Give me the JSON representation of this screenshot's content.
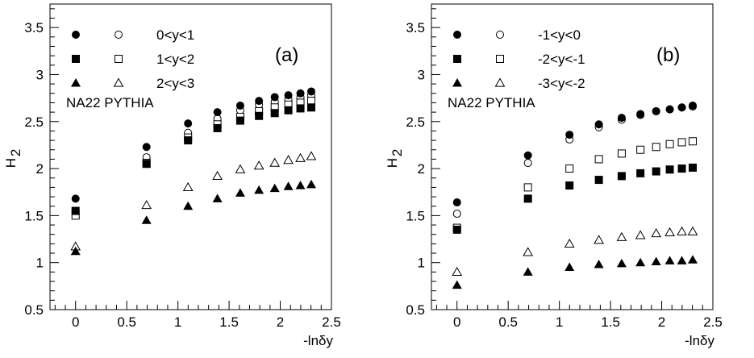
{
  "chart_data": [
    {
      "type": "scatter",
      "panel_label": "(a)",
      "xlabel": "-lnδy",
      "ylabel": "H",
      "ylabel_sub": "2",
      "xlim": [
        -0.25,
        2.5
      ],
      "ylim": [
        0.5,
        3.75
      ],
      "xticks": [
        "0",
        "0.5",
        "1",
        "1.5",
        "2",
        "2.5"
      ],
      "yticks": [
        "0.5",
        "1",
        "1.5",
        "2",
        "2.5",
        "3",
        "3.5"
      ],
      "grid": false,
      "legend_position": "top-left",
      "annotation": "NA22  PYTHIA",
      "x": [
        0,
        0.693,
        1.099,
        1.386,
        1.609,
        1.792,
        1.946,
        2.079,
        2.197,
        2.303
      ],
      "rows": [
        {
          "label": "0<y<1",
          "filled_marker": "circle",
          "open_marker": "circle",
          "filled": [
            1.68,
            2.23,
            2.48,
            2.6,
            2.67,
            2.72,
            2.76,
            2.78,
            2.8,
            2.82
          ],
          "open": [
            1.55,
            2.12,
            2.38,
            2.53,
            2.62,
            2.68,
            2.71,
            2.74,
            2.76,
            2.78
          ]
        },
        {
          "label": "1<y<2",
          "filled_marker": "square",
          "open_marker": "square",
          "filled": [
            1.55,
            2.05,
            2.3,
            2.43,
            2.51,
            2.56,
            2.59,
            2.62,
            2.64,
            2.65
          ],
          "open": [
            1.5,
            2.06,
            2.33,
            2.47,
            2.55,
            2.61,
            2.65,
            2.68,
            2.7,
            2.72
          ]
        },
        {
          "label": "2<y<3",
          "filled_marker": "triangle",
          "open_marker": "triangle",
          "filled": [
            1.12,
            1.45,
            1.6,
            1.68,
            1.74,
            1.77,
            1.79,
            1.81,
            1.82,
            1.83
          ],
          "open": [
            1.17,
            1.61,
            1.8,
            1.92,
            1.99,
            2.03,
            2.06,
            2.09,
            2.11,
            2.13
          ]
        }
      ]
    },
    {
      "type": "scatter",
      "panel_label": "(b)",
      "xlabel": "-lnδy",
      "ylabel": "H",
      "ylabel_sub": "2",
      "xlim": [
        -0.25,
        2.5
      ],
      "ylim": [
        0.5,
        3.75
      ],
      "xticks": [
        "0",
        "0.5",
        "1",
        "1.5",
        "2",
        "2.5"
      ],
      "yticks": [
        "0.5",
        "1",
        "1.5",
        "2",
        "2.5",
        "3",
        "3.5"
      ],
      "grid": false,
      "legend_position": "top-left",
      "annotation": "NA22  PYTHIA",
      "x": [
        0,
        0.693,
        1.099,
        1.386,
        1.609,
        1.792,
        1.946,
        2.079,
        2.197,
        2.303
      ],
      "rows": [
        {
          "label": "-1<y<0",
          "filled_marker": "circle",
          "open_marker": "circle",
          "filled": [
            1.64,
            2.14,
            2.36,
            2.47,
            2.54,
            2.58,
            2.61,
            2.63,
            2.65,
            2.67
          ],
          "open": [
            1.52,
            2.06,
            2.31,
            2.44,
            2.52,
            2.57,
            2.61,
            2.63,
            2.65,
            2.66
          ]
        },
        {
          "label": "-2<y<-1",
          "filled_marker": "square",
          "open_marker": "square",
          "filled": [
            1.35,
            1.68,
            1.82,
            1.88,
            1.92,
            1.95,
            1.97,
            1.99,
            2.0,
            2.01
          ],
          "open": [
            1.37,
            1.8,
            2.0,
            2.1,
            2.16,
            2.2,
            2.23,
            2.26,
            2.28,
            2.29
          ]
        },
        {
          "label": "-3<y<-2",
          "filled_marker": "triangle",
          "open_marker": "triangle",
          "filled": [
            0.76,
            0.9,
            0.95,
            0.98,
            0.99,
            1.0,
            1.01,
            1.02,
            1.02,
            1.03
          ],
          "open": [
            0.9,
            1.11,
            1.2,
            1.24,
            1.27,
            1.29,
            1.31,
            1.32,
            1.33,
            1.33
          ]
        }
      ]
    }
  ]
}
